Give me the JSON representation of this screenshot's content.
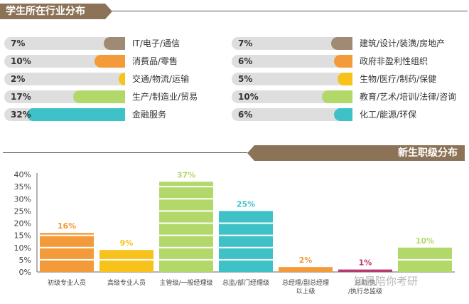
{
  "chart_data": [
    {
      "type": "bar",
      "orientation": "horizontal",
      "title": "学生所在行业分布",
      "categories": [
        "IT/电子/通信",
        "消费品/零售",
        "交通/物流/运输",
        "生产/制造业/贸易",
        "金融服务",
        "建筑/设计/装潢/房地产",
        "政府非盈利性组织",
        "生物/医疗/制药/保健",
        "教育/艺术/培训/法律/咨询",
        "化工/能源/环保"
      ],
      "values": [
        7,
        10,
        2,
        17,
        32,
        7,
        6,
        5,
        10,
        6
      ],
      "labels": [
        "7%",
        "10%",
        "2%",
        "17%",
        "32%",
        "7%",
        "6%",
        "5%",
        "10%",
        "6%"
      ],
      "colors": [
        "#a08a73",
        "#f39a3a",
        "#f8c21c",
        "#b3d86a",
        "#3ec1c7",
        "#a08a73",
        "#f39a3a",
        "#f8c21c",
        "#b3d86a",
        "#3ec1c7"
      ]
    },
    {
      "type": "bar",
      "title": "新生职级分布",
      "categories": [
        "初级专业人员",
        "高级专业人员",
        "主管级/一般经理级",
        "总监/部门经理级",
        "总经理/副总经理以上级",
        "总助/执行总监级",
        ""
      ],
      "category_lines": [
        [
          "初级专业人员"
        ],
        [
          "高级专业人员"
        ],
        [
          "主管级/一般经理级"
        ],
        [
          "总监/部门经理级"
        ],
        [
          "总经理/副总经理",
          "以上级"
        ],
        [
          "总助/执",
          "/执行总监级"
        ],
        [
          ""
        ]
      ],
      "values": [
        16,
        9,
        37,
        25,
        2,
        1,
        10
      ],
      "labels": [
        "16%",
        "9%",
        "37%",
        "25%",
        "2%",
        "1%",
        "10%"
      ],
      "colors": [
        "#f39a3a",
        "#f8c21c",
        "#b3d86a",
        "#3ec1c7",
        "#f39a3a",
        "#b83a6e",
        "#b3d86a"
      ],
      "ylim": [
        0,
        40
      ],
      "yticks": [
        0,
        5,
        10,
        15,
        20,
        25,
        30,
        35,
        40
      ],
      "ytick_labels": [
        "0%",
        "5%",
        "10%",
        "15%",
        "20%",
        "25%",
        "30%",
        "35%",
        "40%"
      ]
    }
  ],
  "watermark": "知晨陪你考研"
}
